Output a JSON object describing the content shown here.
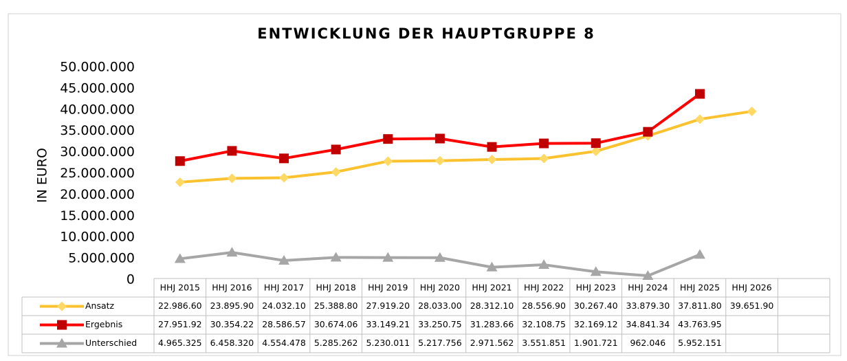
{
  "chart_data": {
    "type": "line",
    "title": "ENTWICKLUNG DER HAUPTGRUPPE 8",
    "y_label": "IN EURO",
    "categories": [
      "HHJ 2015",
      "HHJ 2016",
      "HHJ 2017",
      "HHJ 2018",
      "HHJ 2019",
      "HHJ 2020",
      "HHJ 2021",
      "HHJ 2022",
      "HHJ 2023",
      "HHJ 2024",
      "HHJ 2025",
      "HHJ 2026"
    ],
    "series": [
      {
        "name": "Ansatz",
        "color": "#f9c22e",
        "marker": "diamond",
        "marker_color": "#ffd966",
        "values": [
          22986600,
          23895900,
          24032100,
          25388800,
          27919200,
          28033000,
          28312100,
          28556900,
          30267400,
          33879300,
          37811800,
          39651900
        ],
        "value_labels": [
          "22.986.60",
          "23.895.90",
          "24.032.10",
          "25.388.80",
          "27.919.20",
          "28.033.00",
          "28.312.10",
          "28.556.90",
          "30.267.40",
          "33.879.30",
          "37.811.80",
          "39.651.90"
        ]
      },
      {
        "name": "Ergebnis",
        "color": "#ff0000",
        "marker": "square",
        "marker_color": "#c00000",
        "values": [
          27951920,
          30354220,
          28586570,
          30674060,
          33149210,
          33250750,
          31283660,
          32108750,
          32169120,
          34841340,
          43763950,
          null
        ],
        "value_labels": [
          "27.951.92",
          "30.354.22",
          "28.586.57",
          "30.674.06",
          "33.149.21",
          "33.250.75",
          "31.283.66",
          "32.108.75",
          "32.169.12",
          "34.841.34",
          "43.763.95",
          null
        ]
      },
      {
        "name": "Unterschied",
        "color": "#a6a6a6",
        "marker": "triangle",
        "marker_color": "#a6a6a6",
        "values": [
          4965325,
          6458320,
          4554478,
          5285262,
          5230011,
          5217756,
          2971562,
          3551851,
          1901721,
          962046,
          5952151,
          null
        ],
        "value_labels": [
          "4.965.325",
          "6.458.320",
          "4.554.478",
          "5.285.262",
          "5.230.011",
          "5.217.756",
          "2.971.562",
          "3.551.851",
          "1.901.721",
          "962.046",
          "5.952.151",
          null
        ]
      }
    ],
    "ylim": [
      0,
      50000000
    ],
    "yticks": [
      0,
      {
        "value": 5000000,
        "label": "5.000.000"
      },
      {
        "value": 10000000,
        "label": "10.000.000"
      },
      {
        "value": 15000000,
        "label": "15.000.000"
      },
      {
        "value": 20000000,
        "label": "20.000.000"
      },
      {
        "value": 25000000,
        "label": "25.000.000"
      },
      {
        "value": 30000000,
        "label": "30.000.000"
      },
      {
        "value": 35000000,
        "label": "35.000.000"
      },
      {
        "value": 40000000,
        "label": "40.000.000"
      },
      {
        "value": 45000000,
        "label": "45.000.000"
      },
      {
        "value": 50000000,
        "label": "50.000.000"
      }
    ],
    "grid": false
  }
}
